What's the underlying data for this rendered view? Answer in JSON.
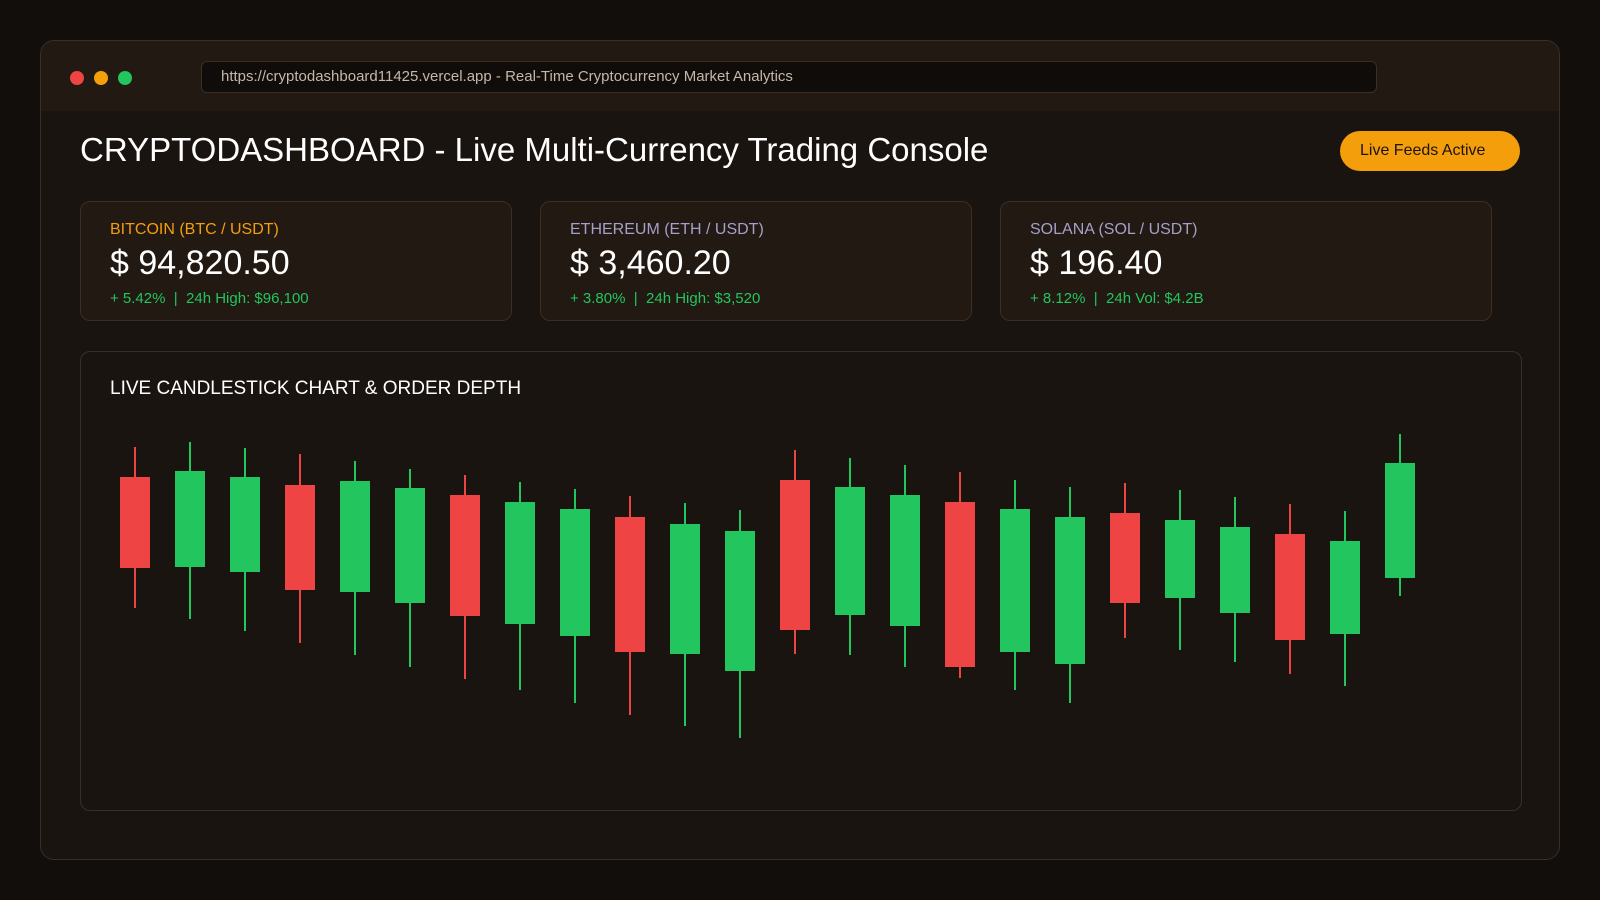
{
  "browser": {
    "url_text": "https://cryptodashboard11425.vercel.app - Real-Time Cryptocurrency Market Analytics"
  },
  "header": {
    "title": "CRYPTODASHBOARD - Live Multi-Currency Trading Console",
    "status_label": "Live Feeds Active"
  },
  "tickers": [
    {
      "label": "BITCOIN (BTC / USDT)",
      "price": "$ 94,820.50",
      "change": "+ 5.42%  |  24h High: $96,100",
      "label_color": "#f59e0b"
    },
    {
      "label": "ETHEREUM (ETH / USDT)",
      "price": "$ 3,460.20",
      "change": "+ 3.80%  |  24h High: $3,520",
      "label_color": "#a5a0c8"
    },
    {
      "label": "SOLANA (SOL / USDT)",
      "price": "$ 196.40",
      "change": "+ 8.12%  |  24h Vol: $4.2B",
      "label_color": "#a5a0c8"
    }
  ],
  "chart": {
    "title": "LIVE CANDLESTICK CHART & ORDER DEPTH"
  },
  "colors": {
    "up": "#22c55e",
    "down": "#ef4444",
    "accent": "#f59e0b"
  },
  "chart_data": {
    "type": "candlestick",
    "candles": [
      {
        "open": 550,
        "close": 459,
        "high": 580,
        "low": 419
      },
      {
        "open": 460,
        "close": 556,
        "high": 585,
        "low": 408
      },
      {
        "open": 455,
        "close": 550,
        "high": 579,
        "low": 396
      },
      {
        "open": 542,
        "close": 437,
        "high": 573,
        "low": 384
      },
      {
        "open": 435,
        "close": 546,
        "high": 566,
        "low": 372
      },
      {
        "open": 424,
        "close": 539,
        "high": 558,
        "low": 360
      },
      {
        "open": 532,
        "close": 411,
        "high": 552,
        "low": 348
      },
      {
        "open": 403,
        "close": 525,
        "high": 545,
        "low": 337
      },
      {
        "open": 391,
        "close": 518,
        "high": 538,
        "low": 324
      },
      {
        "open": 510,
        "close": 375,
        "high": 531,
        "low": 312
      },
      {
        "open": 373,
        "close": 503,
        "high": 524,
        "low": 301
      },
      {
        "open": 356,
        "close": 496,
        "high": 517,
        "low": 289
      },
      {
        "open": 547,
        "close": 397,
        "high": 577,
        "low": 373
      },
      {
        "open": 412,
        "close": 540,
        "high": 569,
        "low": 372
      },
      {
        "open": 401,
        "close": 532,
        "high": 562,
        "low": 360
      },
      {
        "open": 525,
        "close": 360,
        "high": 555,
        "low": 349
      },
      {
        "open": 375,
        "close": 518,
        "high": 547,
        "low": 337
      },
      {
        "open": 363,
        "close": 510,
        "high": 540,
        "low": 324
      },
      {
        "open": 514,
        "close": 424,
        "high": 544,
        "low": 389
      },
      {
        "open": 429,
        "close": 507,
        "high": 537,
        "low": 377
      },
      {
        "open": 414,
        "close": 500,
        "high": 530,
        "low": 365
      },
      {
        "open": 493,
        "close": 387,
        "high": 523,
        "low": 353
      },
      {
        "open": 393,
        "close": 486,
        "high": 516,
        "low": 341
      },
      {
        "open": 449,
        "close": 564,
        "high": 593,
        "low": 431
      }
    ],
    "ylim": [
      250,
      620
    ]
  }
}
